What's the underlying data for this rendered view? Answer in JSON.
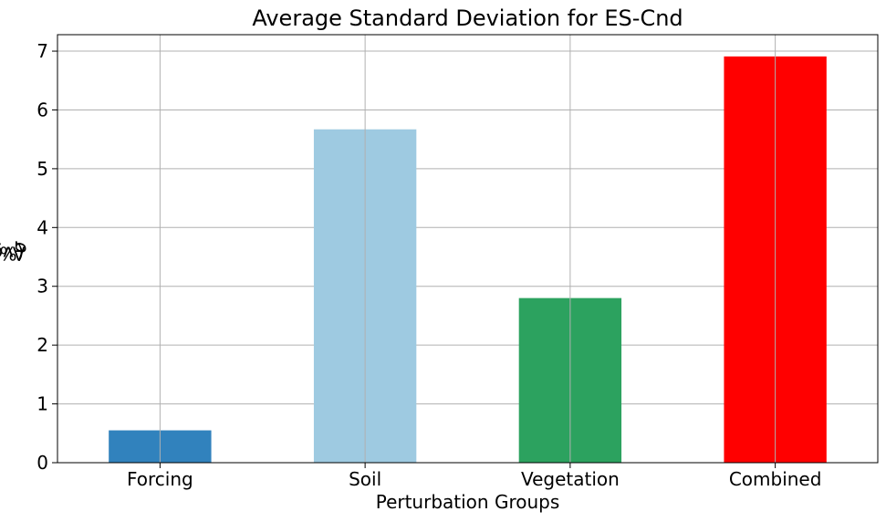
{
  "chart_data": {
    "type": "bar",
    "title": "Average Standard Deviation for ES-Cnd",
    "xlabel": "Perturbation Groups",
    "ylabel_prefix": "Avg ",
    "ylabel_symbol": "σ",
    "ylabel_suffix": " (%)",
    "categories": [
      "Forcing",
      "Soil",
      "Vegetation",
      "Combined"
    ],
    "values": [
      0.55,
      5.67,
      2.8,
      6.91
    ],
    "colors": [
      "#3182bd",
      "#9ecae1",
      "#2ca25f",
      "#ff0000"
    ],
    "ylim": [
      0,
      7.28
    ],
    "yticks": [
      0,
      1,
      2,
      3,
      4,
      5,
      6,
      7
    ],
    "grid": true
  }
}
